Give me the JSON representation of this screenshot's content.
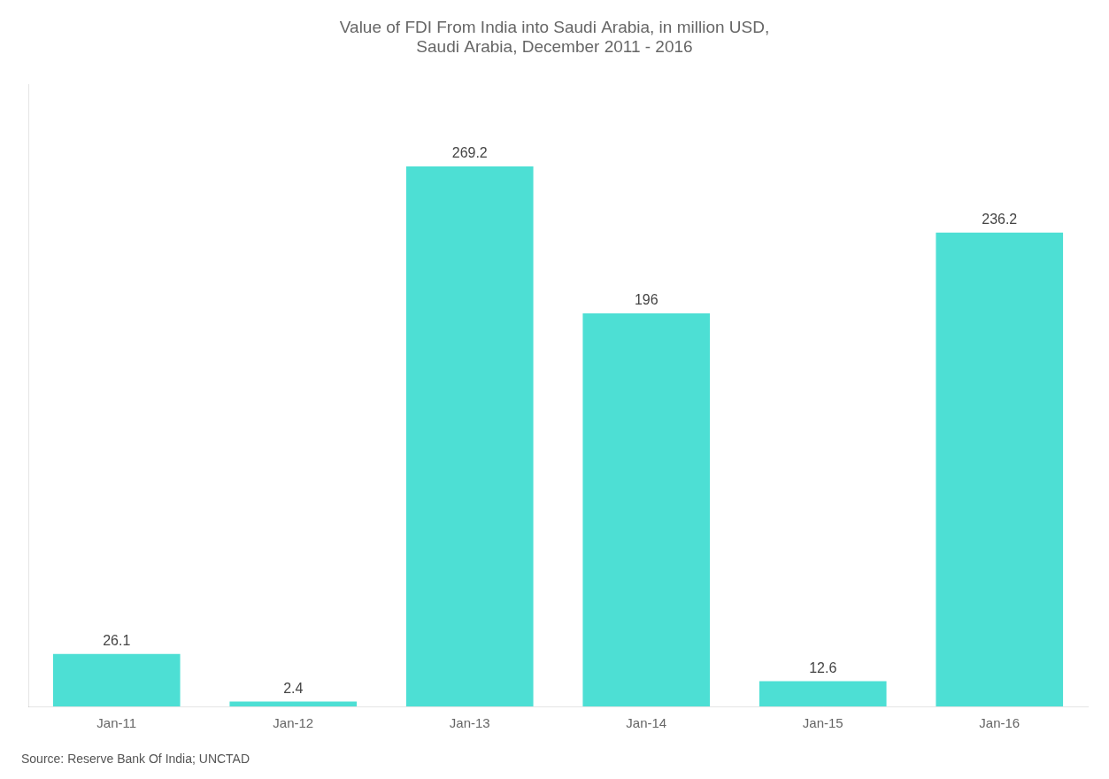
{
  "chart_data": {
    "type": "bar",
    "title": "Value of FDI From India into Saudi Arabia, in million USD,\nSaudi Arabia, December 2011 - 2016",
    "categories": [
      "Jan-11",
      "Jan-12",
      "Jan-13",
      "Jan-14",
      "Jan-15",
      "Jan-16"
    ],
    "values": [
      26.1,
      2.4,
      269.2,
      196,
      12.6,
      236.2
    ],
    "color": "#4DDFD4",
    "ylim": [
      0,
      310
    ],
    "grid": false,
    "data_labels": true,
    "tick_labels": "x",
    "annotations": [
      "Source: Reserve Bank Of India; UNCTAD"
    ]
  }
}
